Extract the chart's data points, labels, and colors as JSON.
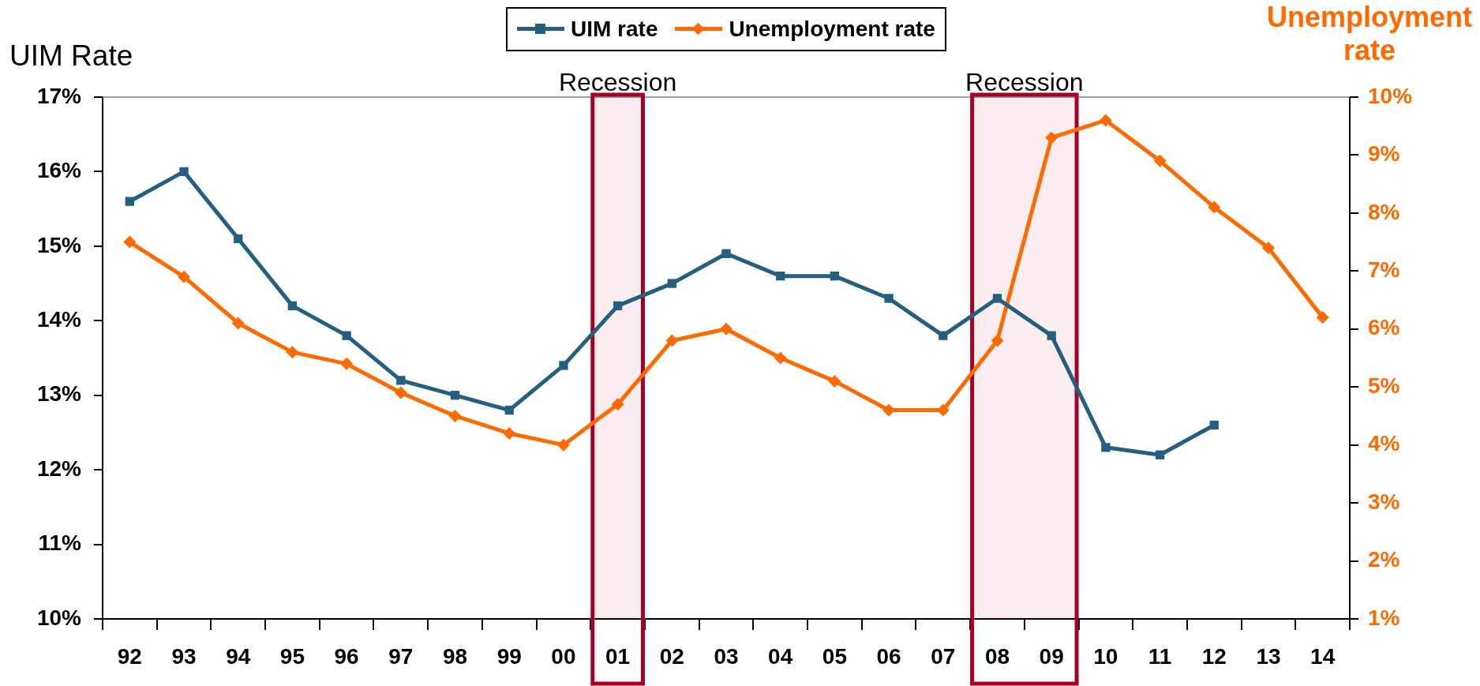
{
  "chart_data": {
    "type": "line",
    "ylabel": "UIM Rate",
    "y2label": "Unemployment rate",
    "legend": "top",
    "categories": [
      "92",
      "93",
      "94",
      "95",
      "96",
      "97",
      "98",
      "99",
      "00",
      "01",
      "02",
      "03",
      "04",
      "05",
      "06",
      "07",
      "08",
      "09",
      "10",
      "11",
      "12",
      "13",
      "14"
    ],
    "series": [
      {
        "name": "UIM rate",
        "color": "#23607f",
        "marker": "square",
        "values": [
          15.6,
          16.0,
          15.1,
          14.2,
          13.8,
          13.2,
          13.0,
          12.8,
          13.4,
          14.2,
          14.5,
          14.9,
          14.6,
          14.6,
          14.3,
          13.8,
          14.3,
          13.8,
          12.3,
          12.2,
          12.6,
          null,
          null
        ]
      },
      {
        "name": "Unemployment rate",
        "color": "#ff6a00",
        "marker": "diamond",
        "axis": "y2",
        "values": [
          7.5,
          6.9,
          6.1,
          5.6,
          5.4,
          4.9,
          4.5,
          4.2,
          4.0,
          4.7,
          5.8,
          6.0,
          5.5,
          5.1,
          4.6,
          4.6,
          5.8,
          9.3,
          9.6,
          8.9,
          8.1,
          7.4,
          6.2
        ]
      }
    ],
    "ylim": [
      10,
      17
    ],
    "yticks": [
      {
        "value": 10,
        "label": "10%"
      },
      {
        "value": 11,
        "label": "11%"
      },
      {
        "value": 12,
        "label": "12%"
      },
      {
        "value": 13,
        "label": "13%"
      },
      {
        "value": 14,
        "label": "14%"
      },
      {
        "value": 15,
        "label": "15%"
      },
      {
        "value": 16,
        "label": "16%"
      },
      {
        "value": 17,
        "label": "17%"
      }
    ],
    "y2lim": [
      1,
      10
    ],
    "y2ticks": [
      {
        "value": 1,
        "label": "1%"
      },
      {
        "value": 2,
        "label": "2%"
      },
      {
        "value": 3,
        "label": "3%"
      },
      {
        "value": 4,
        "label": "4%"
      },
      {
        "value": 5,
        "label": "5%"
      },
      {
        "value": 6,
        "label": "6%"
      },
      {
        "value": 7,
        "label": "7%"
      },
      {
        "value": 8,
        "label": "8%"
      },
      {
        "value": 9,
        "label": "9%"
      },
      {
        "value": 10,
        "label": "10%"
      }
    ],
    "bands": [
      {
        "axis": "x",
        "from": "01",
        "to": "01",
        "label": "Recession",
        "color": "#a50025"
      },
      {
        "axis": "x",
        "from": "08",
        "to": "09",
        "label": "Recession",
        "color": "#a50025"
      }
    ]
  }
}
